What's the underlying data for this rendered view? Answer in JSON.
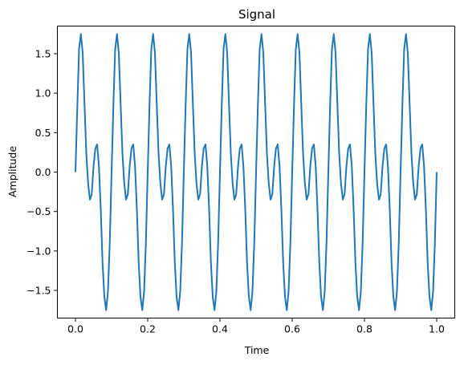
{
  "chart_data": {
    "type": "line",
    "title": "Signal",
    "xlabel": "Time",
    "ylabel": "Amplitude",
    "xlim": [
      -0.05,
      1.05
    ],
    "ylim": [
      -1.85,
      1.85
    ],
    "xticks": [
      0.0,
      0.2,
      0.4,
      0.6,
      0.8,
      1.0
    ],
    "xtick_labels": [
      "0.0",
      "0.2",
      "0.4",
      "0.6",
      "0.8",
      "1.0"
    ],
    "yticks": [
      -1.5,
      -1.0,
      -0.5,
      0.0,
      0.5,
      1.0,
      1.5
    ],
    "ytick_labels": [
      "−1.5",
      "−1.0",
      "−0.5",
      "0.0",
      "0.5",
      "1.0",
      "1.5"
    ],
    "grid": false,
    "series": [
      {
        "color": "#1f77b4",
        "x": [
          0.0,
          0.005,
          0.01,
          0.015,
          0.02,
          0.025,
          0.03,
          0.035,
          0.04,
          0.045,
          0.05,
          0.055,
          0.06,
          0.065,
          0.07,
          0.075,
          0.08,
          0.085,
          0.09,
          0.095,
          0.1,
          0.105,
          0.11,
          0.115,
          0.12,
          0.125,
          0.13,
          0.135,
          0.14,
          0.145,
          0.15,
          0.155,
          0.16,
          0.165,
          0.17,
          0.175,
          0.18,
          0.185,
          0.19,
          0.195,
          0.2,
          0.205,
          0.21,
          0.215,
          0.22,
          0.225,
          0.23,
          0.235,
          0.24,
          0.245,
          0.25,
          0.255,
          0.26,
          0.265,
          0.27,
          0.275,
          0.28,
          0.285,
          0.29,
          0.295,
          0.3,
          0.305,
          0.31,
          0.315,
          0.32,
          0.325,
          0.33,
          0.335,
          0.34,
          0.345,
          0.35,
          0.355,
          0.36,
          0.365,
          0.37,
          0.375,
          0.38,
          0.385,
          0.39,
          0.395,
          0.4,
          0.405,
          0.41,
          0.415,
          0.42,
          0.425,
          0.43,
          0.435,
          0.44,
          0.445,
          0.45,
          0.455,
          0.46,
          0.465,
          0.47,
          0.475,
          0.48,
          0.485,
          0.49,
          0.495,
          0.5,
          0.505,
          0.51,
          0.515,
          0.52,
          0.525,
          0.53,
          0.535,
          0.54,
          0.545,
          0.55,
          0.555,
          0.56,
          0.565,
          0.57,
          0.575,
          0.58,
          0.585,
          0.59,
          0.595,
          0.6,
          0.605,
          0.61,
          0.615,
          0.62,
          0.625,
          0.63,
          0.635,
          0.64,
          0.645,
          0.65,
          0.655,
          0.66,
          0.665,
          0.67,
          0.675,
          0.68,
          0.685,
          0.69,
          0.695,
          0.7,
          0.705,
          0.71,
          0.715,
          0.72,
          0.725,
          0.73,
          0.735,
          0.74,
          0.745,
          0.75,
          0.755,
          0.76,
          0.765,
          0.77,
          0.775,
          0.78,
          0.785,
          0.79,
          0.795,
          0.8,
          0.805,
          0.81,
          0.815,
          0.82,
          0.825,
          0.83,
          0.835,
          0.84,
          0.845,
          0.85,
          0.855,
          0.86,
          0.865,
          0.87,
          0.875,
          0.88,
          0.885,
          0.89,
          0.895,
          0.9,
          0.905,
          0.91,
          0.915,
          0.92,
          0.925,
          0.93,
          0.935,
          0.94,
          0.945,
          0.95,
          0.955,
          0.96,
          0.965,
          0.97,
          0.975,
          0.98,
          0.985,
          0.99,
          0.995,
          1.0
        ],
        "y": [
          0.0,
          0.8,
          1.56,
          1.75,
          1.51,
          0.87,
          0.24,
          -0.14,
          -0.35,
          -0.28,
          0.07,
          0.3,
          0.35,
          0.07,
          -0.47,
          -1.15,
          -1.58,
          -1.75,
          -1.51,
          -0.89,
          0.0,
          0.85,
          1.56,
          1.75,
          1.51,
          0.87,
          0.24,
          -0.14,
          -0.35,
          -0.28,
          0.07,
          0.3,
          0.35,
          0.07,
          -0.47,
          -1.15,
          -1.58,
          -1.75,
          -1.51,
          -0.89,
          0.0,
          0.85,
          1.56,
          1.75,
          1.51,
          0.87,
          0.24,
          -0.14,
          -0.35,
          -0.28,
          0.07,
          0.3,
          0.35,
          0.07,
          -0.47,
          -1.15,
          -1.58,
          -1.75,
          -1.51,
          -0.89,
          0.0,
          0.85,
          1.56,
          1.75,
          1.51,
          0.87,
          0.24,
          -0.14,
          -0.35,
          -0.28,
          0.07,
          0.3,
          0.35,
          0.07,
          -0.47,
          -1.15,
          -1.58,
          -1.75,
          -1.51,
          -0.89,
          0.0,
          0.85,
          1.56,
          1.75,
          1.51,
          0.87,
          0.24,
          -0.14,
          -0.35,
          -0.28,
          0.07,
          0.3,
          0.35,
          0.07,
          -0.47,
          -1.15,
          -1.58,
          -1.75,
          -1.51,
          -0.89,
          0.0,
          0.85,
          1.56,
          1.75,
          1.51,
          0.87,
          0.24,
          -0.14,
          -0.35,
          -0.28,
          0.07,
          0.3,
          0.35,
          0.07,
          -0.47,
          -1.15,
          -1.58,
          -1.75,
          -1.51,
          -0.89,
          0.0,
          0.85,
          1.56,
          1.75,
          1.51,
          0.87,
          0.24,
          -0.14,
          -0.35,
          -0.28,
          0.07,
          0.3,
          0.35,
          0.07,
          -0.47,
          -1.15,
          -1.58,
          -1.75,
          -1.51,
          -0.89,
          0.0,
          0.85,
          1.56,
          1.75,
          1.51,
          0.87,
          0.24,
          -0.14,
          -0.35,
          -0.28,
          0.07,
          0.3,
          0.35,
          0.07,
          -0.47,
          -1.15,
          -1.58,
          -1.75,
          -1.51,
          -0.89,
          0.0,
          0.85,
          1.56,
          1.75,
          1.51,
          0.87,
          0.24,
          -0.14,
          -0.35,
          -0.28,
          0.07,
          0.3,
          0.35,
          0.07,
          -0.47,
          -1.15,
          -1.58,
          -1.75,
          -1.51,
          -0.89,
          0.0,
          0.85,
          1.56,
          1.75,
          1.51,
          0.87,
          0.24,
          -0.14,
          -0.35,
          -0.28,
          0.07,
          0.3,
          0.35,
          0.07,
          -0.47,
          -1.15,
          -1.58,
          -1.75,
          -1.51,
          -0.89,
          0.0
        ]
      }
    ]
  }
}
